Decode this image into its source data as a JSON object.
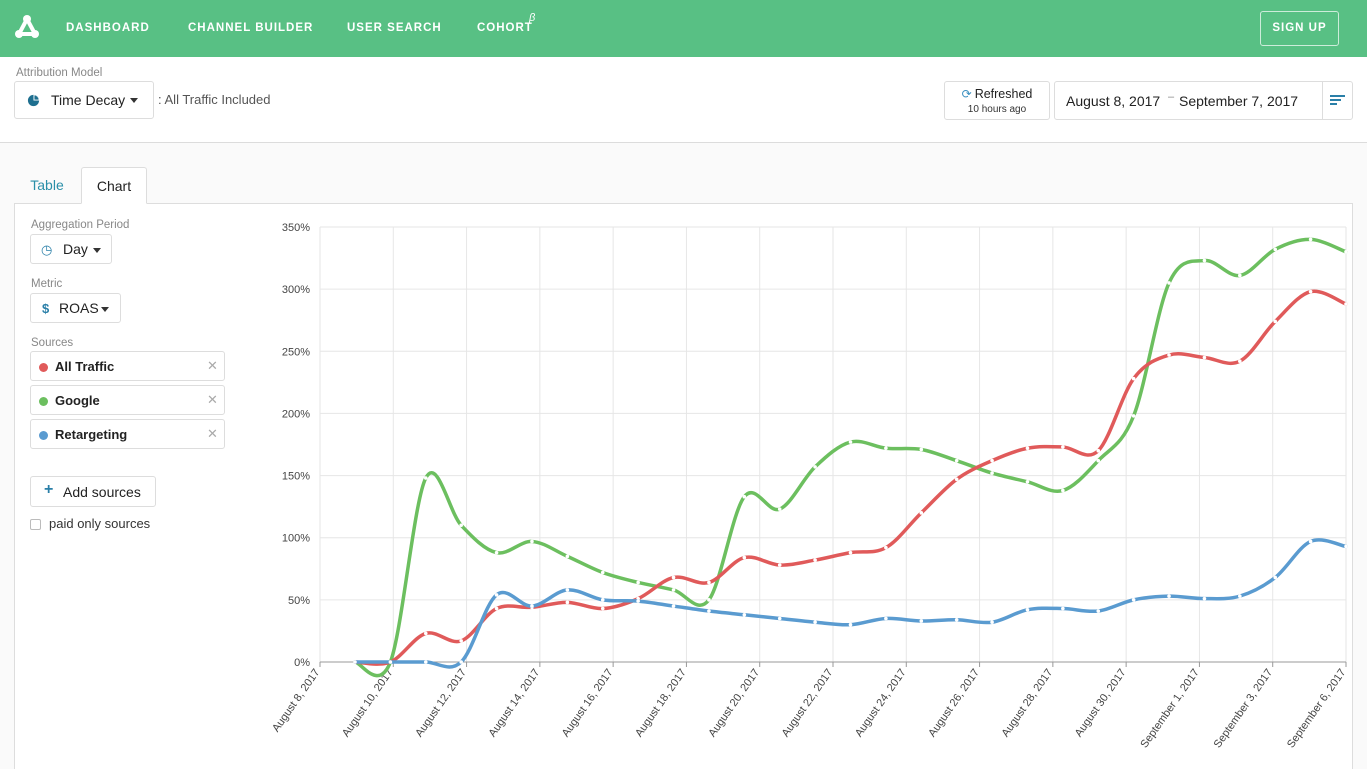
{
  "nav": {
    "items": [
      {
        "label": "DASHBOARD"
      },
      {
        "label": "CHANNEL BUILDER"
      },
      {
        "label": "USER SEARCH"
      },
      {
        "label": "COHORT"
      }
    ],
    "cohort_superscript": "β",
    "signup_label": "SIGN UP"
  },
  "header": {
    "attribution_label": "Attribution Model",
    "attribution_value": "Time Decay",
    "traffic_note": ": All Traffic Included",
    "refreshed_label": "Refreshed",
    "refreshed_ago": "10 hours ago",
    "date_start": "August 8, 2017",
    "date_separator": "–",
    "date_end": "September 7, 2017"
  },
  "tabs": {
    "table": "Table",
    "chart": "Chart"
  },
  "sidebar": {
    "aggregation_label": "Aggregation Period",
    "aggregation_value": "Day",
    "metric_label": "Metric",
    "metric_value": "ROAS",
    "sources_label": "Sources",
    "sources": [
      {
        "label": "All Traffic",
        "color": "#e05a5a"
      },
      {
        "label": "Google",
        "color": "#6cbf5f"
      },
      {
        "label": "Retargeting",
        "color": "#5a9bd0"
      }
    ],
    "add_sources_label": "Add sources",
    "paid_only_label": "paid only sources"
  },
  "chart_data": {
    "type": "line",
    "ylim": [
      0,
      350
    ],
    "y_ticks": [
      "0%",
      "50%",
      "100%",
      "150%",
      "200%",
      "250%",
      "300%",
      "350%"
    ],
    "x_tick_labels": [
      "August 8, 2017",
      "August 10, 2017",
      "August 12, 2017",
      "August 14, 2017",
      "August 16, 2017",
      "August 18, 2017",
      "August 20, 2017",
      "August 22, 2017",
      "August 24, 2017",
      "August 26, 2017",
      "August 28, 2017",
      "August 30, 2017",
      "September 1, 2017",
      "September 3, 2017",
      "September 6, 2017"
    ],
    "x": [
      "Aug 9",
      "Aug 10",
      "Aug 11",
      "Aug 12",
      "Aug 13",
      "Aug 14",
      "Aug 15",
      "Aug 16",
      "Aug 17",
      "Aug 18",
      "Aug 19",
      "Aug 20",
      "Aug 21",
      "Aug 22",
      "Aug 23",
      "Aug 24",
      "Aug 25",
      "Aug 26",
      "Aug 27",
      "Aug 28",
      "Aug 29",
      "Aug 30",
      "Aug 31",
      "Sep 1",
      "Sep 2",
      "Sep 3",
      "Sep 4",
      "Sep 5",
      "Sep 6"
    ],
    "series": [
      {
        "name": "All Traffic",
        "color": "#e05a5a",
        "values": [
          0,
          0,
          23,
          17,
          43,
          44,
          48,
          43,
          51,
          68,
          64,
          84,
          78,
          82,
          88,
          92,
          120,
          147,
          162,
          172,
          173,
          170,
          228,
          247,
          245,
          242,
          274,
          298,
          288
        ]
      },
      {
        "name": "Google",
        "color": "#6cbf5f",
        "values": [
          0,
          0,
          148,
          110,
          88,
          97,
          85,
          72,
          64,
          58,
          50,
          133,
          123,
          157,
          177,
          172,
          171,
          162,
          152,
          145,
          138,
          162,
          198,
          305,
          323,
          311,
          332,
          340,
          330
        ]
      },
      {
        "name": "Retargeting",
        "color": "#5a9bd0",
        "values": [
          0,
          0,
          0,
          0,
          54,
          45,
          58,
          50,
          49,
          45,
          41,
          38,
          35,
          32,
          30,
          35,
          33,
          34,
          32,
          42,
          43,
          41,
          50,
          53,
          51,
          53,
          68,
          97,
          93
        ]
      }
    ],
    "grid": true
  }
}
